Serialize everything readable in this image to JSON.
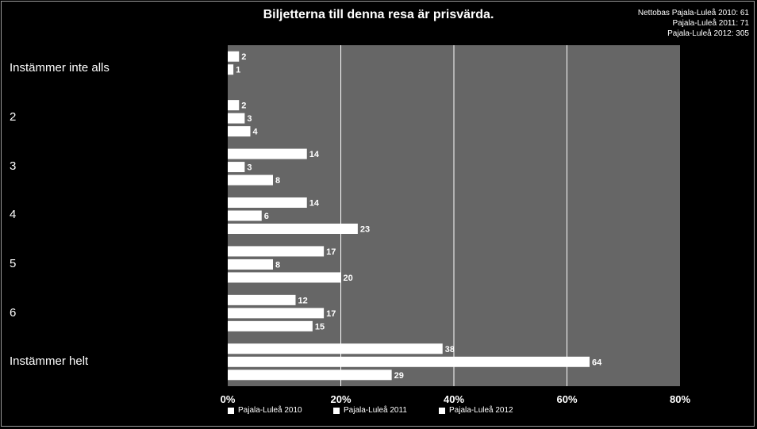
{
  "chart_data": {
    "type": "bar",
    "orientation": "horizontal",
    "title": "Biljetterna till denna resa är prisvärda.",
    "categories": [
      "Instämmer inte alls",
      "2",
      "3",
      "4",
      "5",
      "6",
      "Instämmer helt"
    ],
    "series": [
      {
        "name": "Pajala-Luleå 2010",
        "values": [
          2,
          2,
          14,
          14,
          17,
          12,
          38
        ]
      },
      {
        "name": "Pajala-Luleå 2011",
        "values": [
          1,
          3,
          3,
          6,
          8,
          17,
          64
        ]
      },
      {
        "name": "Pajala-Luleå 2012",
        "values": [
          null,
          4,
          8,
          23,
          20,
          15,
          29
        ]
      }
    ],
    "xlim": [
      0,
      80
    ],
    "xticks": [
      "0%",
      "20%",
      "40%",
      "60%",
      "80%"
    ],
    "grid": true,
    "legend": "bottom",
    "unit": "%"
  },
  "nettobas": {
    "line1": "Nettobas  Pajala-Luleå 2010: 61",
    "line2": "Pajala-Luleå 2011: 71",
    "line3": "Pajala-Luleå 2012: 305"
  },
  "colors": {
    "background": "#000000",
    "plot_area": "#666666",
    "bars": "#ffffff",
    "gridlines": "#ffffff",
    "text": "#ffffff"
  }
}
